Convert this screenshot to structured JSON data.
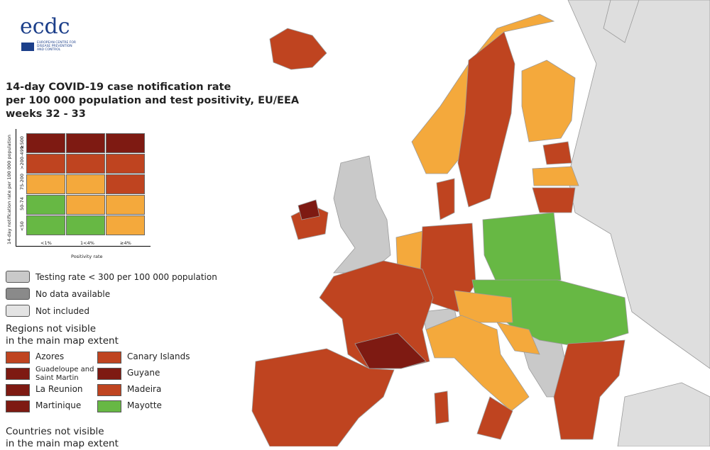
{
  "logo": {
    "text": "ecdc",
    "subtitle": [
      "EUROPEAN CENTRE FOR",
      "DISEASE PREVENTION",
      "AND CONTROL"
    ]
  },
  "title": [
    "14-day COVID-19 case notification rate",
    "per 100 000 population and test positivity, EU/EEA",
    "weeks 32 - 33"
  ],
  "matrix": {
    "y_label": "14-day notification rate per 100 000 population",
    "rows": [
      "≥500",
      ">200-499",
      "75-200",
      "50-74",
      "<50"
    ],
    "columns": [
      "<1%",
      "1<4%",
      "≥4%"
    ],
    "x_label": "Positivity rate",
    "cells": [
      [
        "#7e1a12",
        "#7e1a12",
        "#7e1a12"
      ],
      [
        "#bf4420",
        "#bf4420",
        "#bf4420"
      ],
      [
        "#f4a93c",
        "#f4a93c",
        "#bf4420"
      ],
      [
        "#67b844",
        "#f4a93c",
        "#f4a93c"
      ],
      [
        "#67b844",
        "#67b844",
        "#f4a93c"
      ]
    ]
  },
  "legend": [
    {
      "label": "Testing rate < 300 per 100 000 population",
      "color": "#c9c9c9"
    },
    {
      "label": "No data available",
      "color": "#8a8a8a"
    },
    {
      "label": "Not included",
      "color": "#e3e3e3"
    }
  ],
  "regions": {
    "heading": [
      "Regions not visible",
      "in the main map extent"
    ],
    "items": [
      {
        "label": "Azores",
        "color": "#bf4420"
      },
      {
        "label": "Canary Islands",
        "color": "#bf4420"
      },
      {
        "label": "Guadeloupe and Saint Martin",
        "color": "#7e1a12"
      },
      {
        "label": "Guyane",
        "color": "#7e1a12"
      },
      {
        "label": "La Reunion",
        "color": "#7e1a12"
      },
      {
        "label": "Madeira",
        "color": "#bf4420"
      },
      {
        "label": "Martinique",
        "color": "#7e1a12"
      },
      {
        "label": "Mayotte",
        "color": "#67b844"
      }
    ]
  },
  "countries": {
    "heading": [
      "Countries not visible",
      "in the main map extent"
    ]
  }
}
